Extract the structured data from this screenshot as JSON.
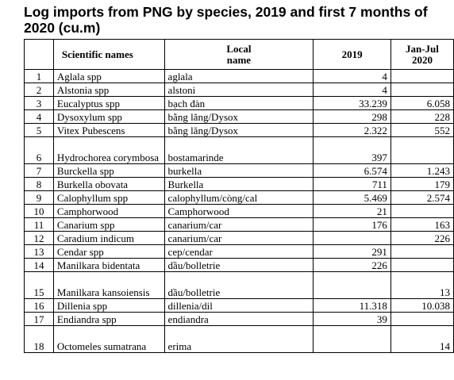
{
  "title": "Log imports from PNG by species, 2019 and first 7 months of 2020 (cu.m)",
  "headers": {
    "index": "",
    "scientific": "Scientific names",
    "local_line1": "Local",
    "local_line2": "name",
    "y2019": "2019",
    "y2020_line1": "Jan-Jul",
    "y2020_line2": "2020"
  },
  "rows": [
    {
      "no": "1",
      "scientific": "Aglala spp",
      "local": "aglala",
      "y2019": "4",
      "y2020": ""
    },
    {
      "no": "2",
      "scientific": "Alstonia spp",
      "local": "alstoni",
      "y2019": "4",
      "y2020": ""
    },
    {
      "no": "3",
      "scientific": "Eucalyptus spp",
      "local": "bạch đàn",
      "y2019": "33.239",
      "y2020": "6.058"
    },
    {
      "no": "4",
      "scientific": "Dysoxylum spp",
      "local": "bằng lăng/Dysox",
      "y2019": "298",
      "y2020": "228"
    },
    {
      "no": "5",
      "scientific": "Vitex Pubescens",
      "local": "bằng lăng/Dysox",
      "y2019": "2.322",
      "y2020": "552"
    },
    {
      "no": "6",
      "scientific": "Hydrochorea corymbosa",
      "local": "bostamarinde",
      "y2019": "397",
      "y2020": ""
    },
    {
      "no": "7",
      "scientific": "Burckella spp",
      "local": "burkella",
      "y2019": "6.574",
      "y2020": "1.243"
    },
    {
      "no": "8",
      "scientific": "Burkella obovata",
      "local": "Burkella",
      "y2019": "711",
      "y2020": "179"
    },
    {
      "no": "9",
      "scientific": "Calophyllum spp",
      "local": "calophyllum/còng/cal",
      "y2019": "5.469",
      "y2020": "2.574"
    },
    {
      "no": "10",
      "scientific": "Camphorwood",
      "local": "Camphorwood",
      "y2019": "21",
      "y2020": ""
    },
    {
      "no": "11",
      "scientific": "Canarium spp",
      "local": "canarium/car",
      "y2019": "176",
      "y2020": "163"
    },
    {
      "no": "12",
      "scientific": "Caradium indicum",
      "local": "canarium/car",
      "y2019": "",
      "y2020": "226"
    },
    {
      "no": "13",
      "scientific": "Cendar spp",
      "local": "cep/cendar",
      "y2019": "291",
      "y2020": ""
    },
    {
      "no": "14",
      "scientific": "Manilkara bidentata",
      "local": "dầu/bolletrie",
      "y2019": "226",
      "y2020": ""
    },
    {
      "no": "15",
      "scientific": "Manilkara kansoiensis",
      "local": "dầu/bolletrie",
      "y2019": "",
      "y2020": "13"
    },
    {
      "no": "16",
      "scientific": "Dillenia spp",
      "local": "dillenia/dil",
      "y2019": "11.318",
      "y2020": "10.038"
    },
    {
      "no": "17",
      "scientific": "Endiandra spp",
      "local": "endiandra",
      "y2019": "39",
      "y2020": ""
    },
    {
      "no": "18",
      "scientific": "Octomeles sumatrana",
      "local": "erima",
      "y2019": "",
      "y2020": "14"
    }
  ]
}
